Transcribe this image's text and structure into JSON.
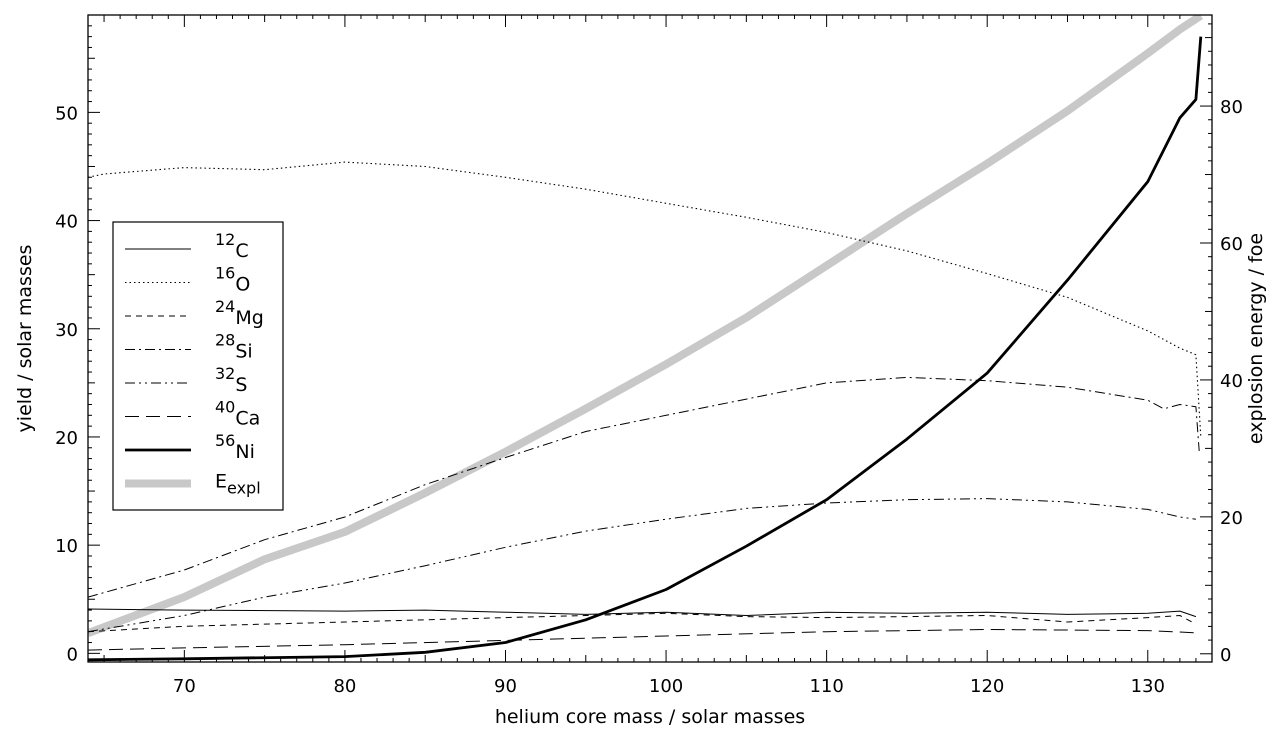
{
  "chart_data": {
    "type": "line",
    "title": "",
    "xlabel": "helium core mass / solar masses",
    "ylabel": "yield / solar masses",
    "y2label": "explosion energy / foe",
    "xlim": [
      64,
      134
    ],
    "ylim": [
      -0.8,
      59
    ],
    "y2lim": [
      -1.2,
      93.3
    ],
    "xticks": [
      70,
      80,
      90,
      100,
      110,
      120,
      130
    ],
    "yticks": [
      0,
      10,
      20,
      30,
      40,
      50
    ],
    "y2ticks": [
      0,
      20,
      40,
      60,
      80
    ],
    "grid": false,
    "legend_position": "left",
    "series": [
      {
        "name": "12C",
        "isotope_mass": "12",
        "isotope_symbol": "C",
        "style": "thin-solid",
        "axis": "left",
        "x": [
          64,
          70,
          80,
          85,
          90,
          95,
          100,
          105,
          110,
          115,
          120,
          125,
          130,
          132,
          133
        ],
        "y": [
          4.1,
          4.0,
          3.9,
          4.0,
          3.8,
          3.6,
          3.8,
          3.5,
          3.8,
          3.7,
          3.8,
          3.6,
          3.7,
          3.9,
          3.4
        ]
      },
      {
        "name": "16O",
        "isotope_mass": "16",
        "isotope_symbol": "O",
        "style": "dotted",
        "axis": "left",
        "x": [
          64,
          65,
          70,
          75,
          80,
          85,
          90,
          95,
          100,
          105,
          110,
          115,
          120,
          125,
          130,
          132,
          133,
          133.3
        ],
        "y": [
          44,
          44.3,
          44.9,
          44.7,
          45.4,
          45.0,
          44.0,
          42.9,
          41.6,
          40.3,
          38.9,
          37.2,
          35.1,
          32.9,
          29.8,
          28.2,
          27.6,
          20
        ]
      },
      {
        "name": "24Mg",
        "isotope_mass": "24",
        "isotope_symbol": "Mg",
        "style": "dashed",
        "axis": "left",
        "x": [
          64,
          70,
          80,
          90,
          95,
          100,
          105,
          110,
          115,
          120,
          125,
          130,
          132,
          133
        ],
        "y": [
          2.0,
          2.5,
          2.9,
          3.3,
          3.5,
          3.7,
          3.4,
          3.3,
          3.4,
          3.5,
          2.9,
          3.3,
          3.5,
          2.7
        ]
      },
      {
        "name": "28Si",
        "isotope_mass": "28",
        "isotope_symbol": "Si",
        "style": "dash-dot",
        "axis": "left",
        "x": [
          64,
          70,
          75,
          80,
          85,
          90,
          95,
          100,
          105,
          110,
          115,
          120,
          125,
          130,
          131,
          132,
          133,
          133.2
        ],
        "y": [
          5.2,
          7.7,
          10.5,
          12.6,
          15.6,
          18.1,
          20.5,
          22.0,
          23.5,
          25.0,
          25.5,
          25.2,
          24.6,
          23.4,
          22.6,
          23.0,
          22.8,
          18.7
        ]
      },
      {
        "name": "32S",
        "isotope_mass": "32",
        "isotope_symbol": "S",
        "style": "dash-dot-dot",
        "axis": "left",
        "x": [
          64,
          70,
          75,
          80,
          85,
          90,
          95,
          100,
          105,
          110,
          115,
          120,
          125,
          130,
          132,
          133
        ],
        "y": [
          2.0,
          3.5,
          5.2,
          6.5,
          8.1,
          9.8,
          11.3,
          12.4,
          13.4,
          13.9,
          14.2,
          14.3,
          14.0,
          13.3,
          12.6,
          12.4
        ]
      },
      {
        "name": "40Ca",
        "isotope_mass": "40",
        "isotope_symbol": "Ca",
        "style": "long-dash",
        "axis": "left",
        "x": [
          64,
          70,
          80,
          90,
          100,
          110,
          120,
          130,
          133
        ],
        "y": [
          0.3,
          0.5,
          0.8,
          1.2,
          1.6,
          2.0,
          2.2,
          2.1,
          1.9
        ]
      },
      {
        "name": "56Ni",
        "isotope_mass": "56",
        "isotope_symbol": "Ni",
        "style": "thick-solid",
        "axis": "left",
        "x": [
          64,
          70,
          80,
          85,
          90,
          95,
          100,
          105,
          110,
          115,
          120,
          125,
          130,
          132,
          133,
          133.3
        ],
        "y": [
          -0.6,
          -0.5,
          -0.3,
          0.1,
          1.0,
          3.1,
          5.9,
          9.9,
          14.2,
          19.8,
          25.9,
          34.5,
          43.6,
          49.5,
          51.2,
          57.0
        ]
      },
      {
        "name": "E_expl",
        "label_main": "E",
        "label_sub": "expl",
        "style": "thick-gray",
        "axis": "right",
        "x": [
          64,
          70,
          75,
          80,
          85,
          90,
          95,
          100,
          105,
          110,
          115,
          120,
          125,
          130,
          132,
          133.3
        ],
        "y": [
          3.0,
          8.3,
          13.8,
          17.8,
          23.5,
          29.5,
          35.8,
          42.3,
          49.1,
          56.7,
          64.3,
          71.6,
          79.3,
          87.7,
          91.2,
          93.2
        ]
      }
    ]
  },
  "colors": {
    "axis": "#000000",
    "energy_line": "#c8c8c8",
    "series_line": "#000000"
  }
}
